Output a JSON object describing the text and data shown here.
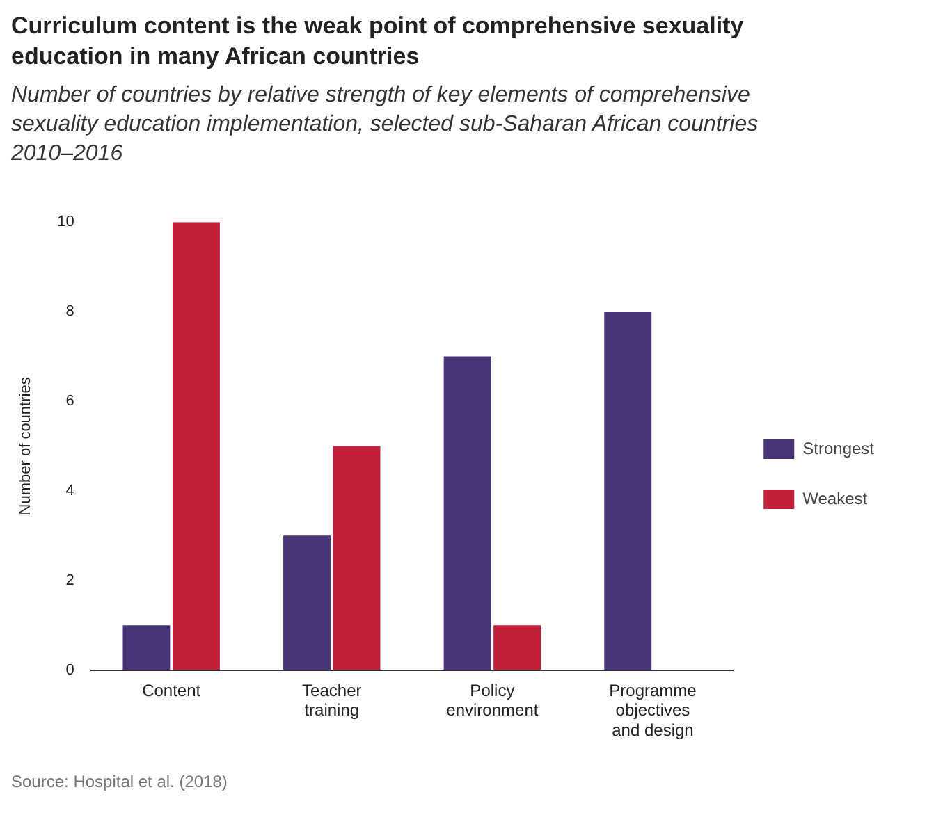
{
  "chart_data": {
    "type": "bar",
    "title": "Curriculum content is the weak point of comprehensive sexuality education in many African countries",
    "subtitle": "Number of countries by relative strength of key elements of comprehensive sexuality education implementation, selected sub-Saharan African countries 2010–2016",
    "ylabel": "Number of countries",
    "categories": [
      "Content",
      "Teacher training",
      "Policy environment",
      "Programme objectives and design"
    ],
    "series": [
      {
        "name": "Strongest",
        "color": "#483477",
        "values": [
          1,
          3,
          7,
          8
        ]
      },
      {
        "name": "Weakest",
        "color": "#c0203a",
        "values": [
          10,
          5,
          1,
          0
        ]
      }
    ],
    "ylim": [
      0,
      10
    ],
    "yticks": [
      0,
      2,
      4,
      6,
      8,
      10
    ],
    "grid": false,
    "legend": "right",
    "annotations": [
      "Source: Hospital et al. (2018)"
    ]
  }
}
